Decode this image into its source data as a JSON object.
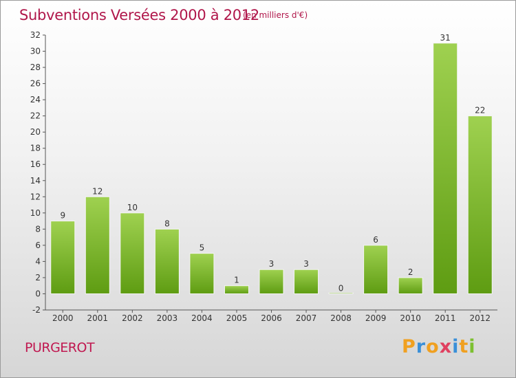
{
  "header": {
    "title": "Subventions Versées 2000 à 2012",
    "unit": "(en milliers d'€)"
  },
  "footer": {
    "commune": "PURGEROT",
    "brand": [
      "P",
      "r",
      "o",
      "x",
      "i",
      "t",
      "i"
    ]
  },
  "colors": {
    "title": "#b0164a",
    "bar_top": "#9fd150",
    "bar_bottom": "#5e9c12",
    "brand_letters": [
      "#f0a020",
      "#3a8fd8",
      "#f0a020",
      "#e04060",
      "#3a8fd8",
      "#f0a020",
      "#7cc030"
    ]
  },
  "chart_data": {
    "type": "bar",
    "title": "Subventions Versées 2000 à 2012",
    "categories": [
      "2000",
      "2001",
      "2002",
      "2003",
      "2004",
      "2005",
      "2006",
      "2007",
      "2008",
      "2009",
      "2010",
      "2011",
      "2012"
    ],
    "values": [
      9,
      12,
      10,
      8,
      5,
      1,
      3,
      3,
      0,
      6,
      2,
      31,
      22
    ],
    "ylim": [
      -2,
      32
    ],
    "yticks": [
      -2,
      0,
      2,
      4,
      6,
      8,
      10,
      12,
      14,
      16,
      18,
      20,
      22,
      24,
      26,
      28,
      30,
      32
    ],
    "grid": false,
    "legend": "none"
  }
}
